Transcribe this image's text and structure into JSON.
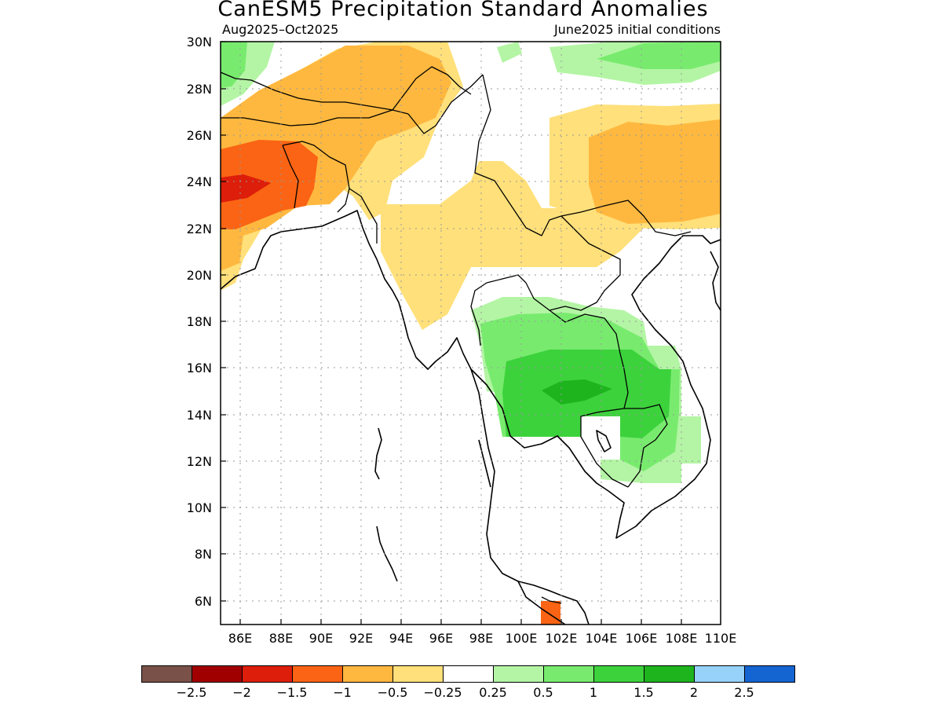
{
  "title": "CanESM5 Precipitation Standard Anomalies",
  "subtitle_left": "Aug2025–Oct2025",
  "subtitle_right": "June2025 initial conditions",
  "lat_labels": [
    "30N",
    "28N",
    "26N",
    "24N",
    "22N",
    "20N",
    "18N",
    "16N",
    "14N",
    "12N",
    "10N",
    "8N",
    "6N"
  ],
  "lon_labels": [
    "86E",
    "88E",
    "90E",
    "92E",
    "94E",
    "96E",
    "98E",
    "100E",
    "102E",
    "104E",
    "106E",
    "108E",
    "110E"
  ],
  "colorbar": {
    "colors": [
      "#7a5148",
      "#a00000",
      "#dc1e0a",
      "#fa6414",
      "#ffb83f",
      "#ffe07a",
      "#ffffff",
      "#b4f5a5",
      "#78eb6e",
      "#3cd23c",
      "#1eb41e",
      "#96d2fa",
      "#1464d2"
    ],
    "labels": [
      "−2.5",
      "−2",
      "−1.5",
      "−1",
      "−0.5",
      "−0.25",
      "0.25",
      "0.5",
      "1",
      "1.5",
      "2",
      "2.5"
    ]
  },
  "legend_colors": {
    "c_m25": "#7a5148",
    "c_m2": "#a00000",
    "c_m15": "#dc1e0a",
    "c_m1": "#fa6414",
    "c_m05": "#ffb83f",
    "c_m025": "#ffe07a",
    "c_p025": "#b4f5a5",
    "c_p05": "#78eb6e",
    "c_p1": "#3cd23c",
    "c_p15": "#1eb41e"
  }
}
